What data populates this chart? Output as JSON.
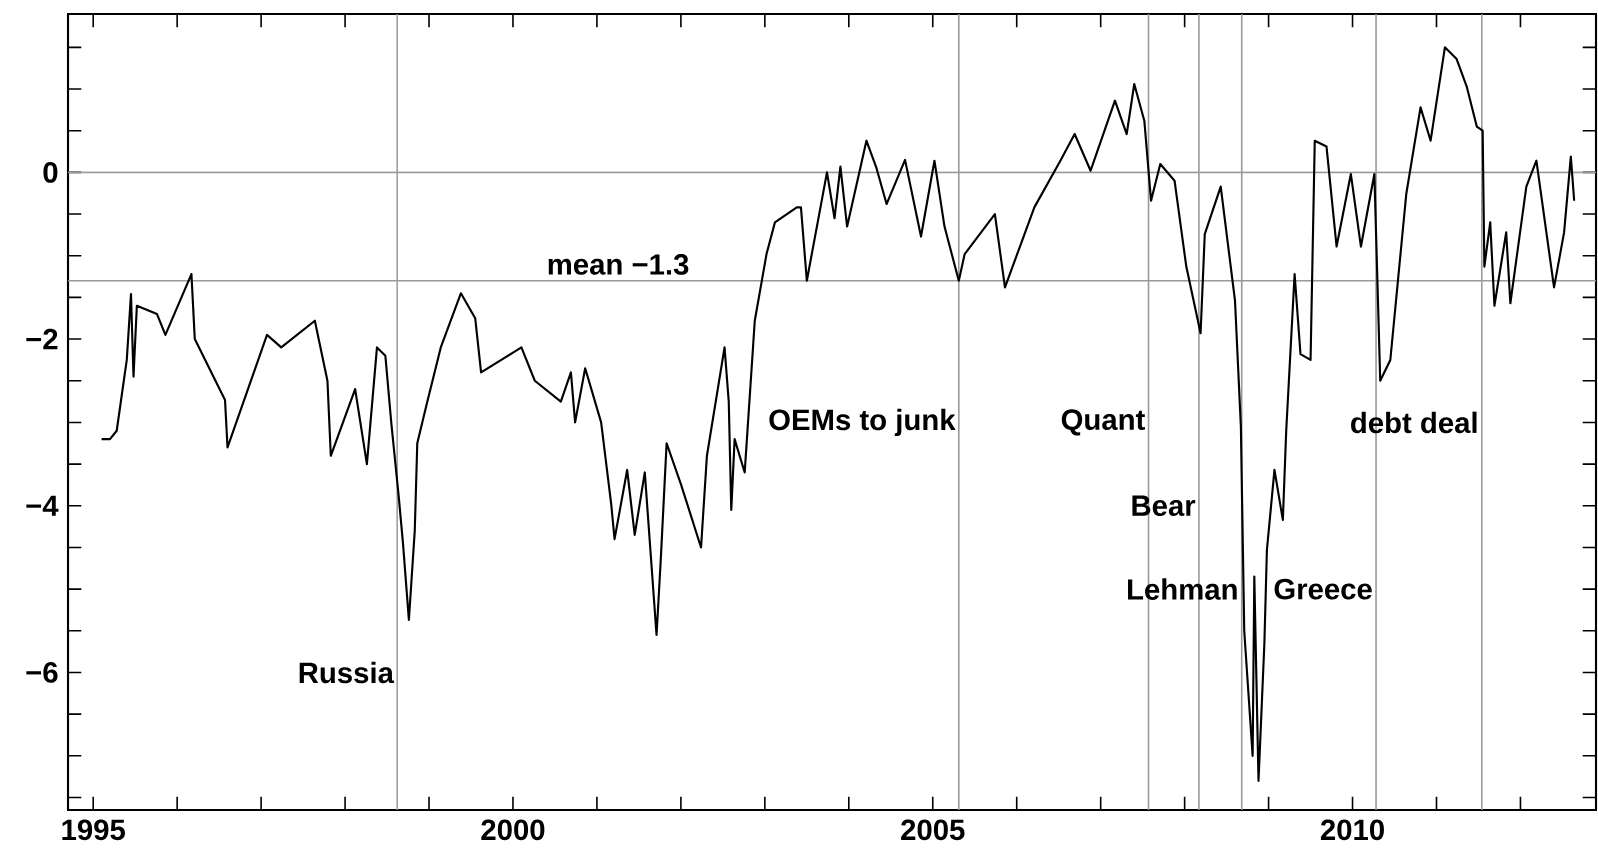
{
  "chart_data": {
    "type": "line",
    "xlim": [
      1994.7,
      2012.9
    ],
    "ylim": [
      -7.65,
      1.9
    ],
    "xticks": [
      1995,
      {
        "value": 1996,
        "label": null
      },
      {
        "value": 1997,
        "label": null
      },
      {
        "value": 1998,
        "label": null
      },
      {
        "value": 1999,
        "label": null
      },
      2000,
      {
        "value": 2001,
        "label": null
      },
      {
        "value": 2002,
        "label": null
      },
      {
        "value": 2003,
        "label": null
      },
      {
        "value": 2004,
        "label": null
      },
      2005,
      {
        "value": 2006,
        "label": null
      },
      {
        "value": 2007,
        "label": null
      },
      {
        "value": 2008,
        "label": null
      },
      {
        "value": 2009,
        "label": null
      },
      2010,
      {
        "value": 2011,
        "label": null
      },
      {
        "value": 2012,
        "label": null
      }
    ],
    "yticks": [
      {
        "value": -7.5,
        "label": null
      },
      {
        "value": -7,
        "label": null
      },
      {
        "value": -6.5,
        "label": null
      },
      {
        "value": -6,
        "label": "−6"
      },
      {
        "value": -5.5,
        "label": null
      },
      {
        "value": -5,
        "label": null
      },
      {
        "value": -4.5,
        "label": null
      },
      {
        "value": -4,
        "label": "−4"
      },
      {
        "value": -3.5,
        "label": null
      },
      {
        "value": -3,
        "label": null
      },
      {
        "value": -2.5,
        "label": null
      },
      {
        "value": -2,
        "label": "−2"
      },
      {
        "value": -1.5,
        "label": null
      },
      {
        "value": -1,
        "label": null
      },
      {
        "value": -0.5,
        "label": null
      },
      0,
      {
        "value": 0.5,
        "label": null
      },
      {
        "value": 1,
        "label": null
      },
      {
        "value": 1.5,
        "label": null
      }
    ],
    "line_style": "solid",
    "series": [
      {
        "color": "#000000",
        "x": [
          1995.1,
          1995.2,
          1995.28,
          1995.4,
          1995.45,
          1995.48,
          1995.52,
          1995.76,
          1995.86,
          1996.17,
          1996.21,
          1996.57,
          1996.6,
          1997.07,
          1997.24,
          1997.64,
          1997.79,
          1997.83,
          1998.12,
          1998.26,
          1998.38,
          1998.48,
          1998.55,
          1998.64,
          1998.69,
          1998.76,
          1998.83,
          1998.86,
          1998.98,
          1999.14,
          1999.38,
          1999.55,
          1999.62,
          2000.1,
          2000.26,
          2000.57,
          2000.69,
          2000.74,
          2000.86,
          2001.05,
          2001.17,
          2001.21,
          2001.36,
          2001.45,
          2001.57,
          2001.71,
          2001.76,
          2001.83,
          2002.0,
          2002.24,
          2002.31,
          2002.52,
          2002.57,
          2002.6,
          2002.64,
          2002.76,
          2002.88,
          2003.02,
          2003.12,
          2003.38,
          2003.43,
          2003.5,
          2003.74,
          2003.83,
          2003.9,
          2003.98,
          2004.21,
          2004.33,
          2004.45,
          2004.67,
          2004.86,
          2005.02,
          2005.14,
          2005.31,
          2005.38,
          2005.74,
          2005.86,
          2006.21,
          2006.52,
          2006.69,
          2006.88,
          2007.17,
          2007.31,
          2007.4,
          2007.52,
          2007.6,
          2007.71,
          2007.88,
          2008.02,
          2008.19,
          2008.24,
          2008.43,
          2008.6,
          2008.67,
          2008.71,
          2008.81,
          2008.83,
          2008.88,
          2008.95,
          2008.98,
          2009.07,
          2009.17,
          2009.21,
          2009.31,
          2009.38,
          2009.5,
          2009.55,
          2009.69,
          2009.81,
          2009.98,
          2010.1,
          2010.26,
          2010.33,
          2010.45,
          2010.64,
          2010.81,
          2010.93,
          2011.1,
          2011.24,
          2011.36,
          2011.48,
          2011.55,
          2011.57,
          2011.64,
          2011.69,
          2011.83,
          2011.88,
          2012.07,
          2012.19,
          2012.4,
          2012.52,
          2012.6,
          2012.64
        ],
        "values": [
          -3.2,
          -3.2,
          -3.1,
          -2.25,
          -1.46,
          -2.45,
          -1.6,
          -1.7,
          -1.95,
          -1.22,
          -2.0,
          -2.73,
          -3.3,
          -1.95,
          -2.1,
          -1.78,
          -2.5,
          -3.4,
          -2.6,
          -3.5,
          -2.1,
          -2.2,
          -3.0,
          -3.9,
          -4.45,
          -5.37,
          -4.3,
          -3.25,
          -2.75,
          -2.1,
          -1.45,
          -1.75,
          -2.4,
          -2.1,
          -2.5,
          -2.75,
          -2.4,
          -3.0,
          -2.35,
          -3.0,
          -3.98,
          -4.4,
          -3.57,
          -4.35,
          -3.6,
          -5.55,
          -4.65,
          -3.25,
          -3.74,
          -4.5,
          -3.4,
          -2.1,
          -2.75,
          -4.05,
          -3.2,
          -3.6,
          -1.78,
          -0.98,
          -0.6,
          -0.42,
          -0.42,
          -1.3,
          0.0,
          -0.55,
          0.07,
          -0.65,
          0.38,
          0.05,
          -0.38,
          0.15,
          -0.77,
          0.14,
          -0.65,
          -1.3,
          -0.98,
          -0.5,
          -1.38,
          -0.42,
          0.14,
          0.46,
          0.02,
          0.86,
          0.46,
          1.06,
          0.62,
          -0.34,
          0.1,
          -0.1,
          -1.13,
          -1.93,
          -0.74,
          -0.17,
          -1.54,
          -3.05,
          -5.5,
          -7.0,
          -4.85,
          -7.3,
          -5.65,
          -4.53,
          -3.57,
          -4.17,
          -3.1,
          -1.22,
          -2.18,
          -2.25,
          0.38,
          0.31,
          -0.89,
          -0.02,
          -0.89,
          -0.02,
          -2.5,
          -2.25,
          -0.26,
          0.78,
          0.38,
          1.5,
          1.36,
          1.03,
          0.55,
          0.5,
          -1.13,
          -0.6,
          -1.6,
          -0.72,
          -1.57,
          -0.17,
          0.14,
          -1.38,
          -0.72,
          0.19,
          -0.34
        ]
      }
    ],
    "ref_lines": [
      {
        "axis": "y",
        "value": 0,
        "color": "#999999"
      },
      {
        "axis": "y",
        "value": -1.3,
        "label": "mean −1.3",
        "color": "#999999"
      },
      {
        "axis": "x",
        "value": 1998.62,
        "label": "Russia",
        "color": "#999999"
      },
      {
        "axis": "x",
        "value": 2005.31,
        "label": "OEMs to junk",
        "color": "#999999"
      },
      {
        "axis": "x",
        "value": 2007.57,
        "label": "Quant",
        "color": "#999999"
      },
      {
        "axis": "x",
        "value": 2008.17,
        "label": "Bear",
        "color": "#999999"
      },
      {
        "axis": "x",
        "value": 2008.68,
        "label": "Lehman",
        "color": "#999999"
      },
      {
        "axis": "x",
        "value": 2010.28,
        "label": "Greece",
        "color": "#999999"
      },
      {
        "axis": "x",
        "value": 2011.54,
        "label": "debt deal",
        "color": "#999999"
      }
    ]
  }
}
